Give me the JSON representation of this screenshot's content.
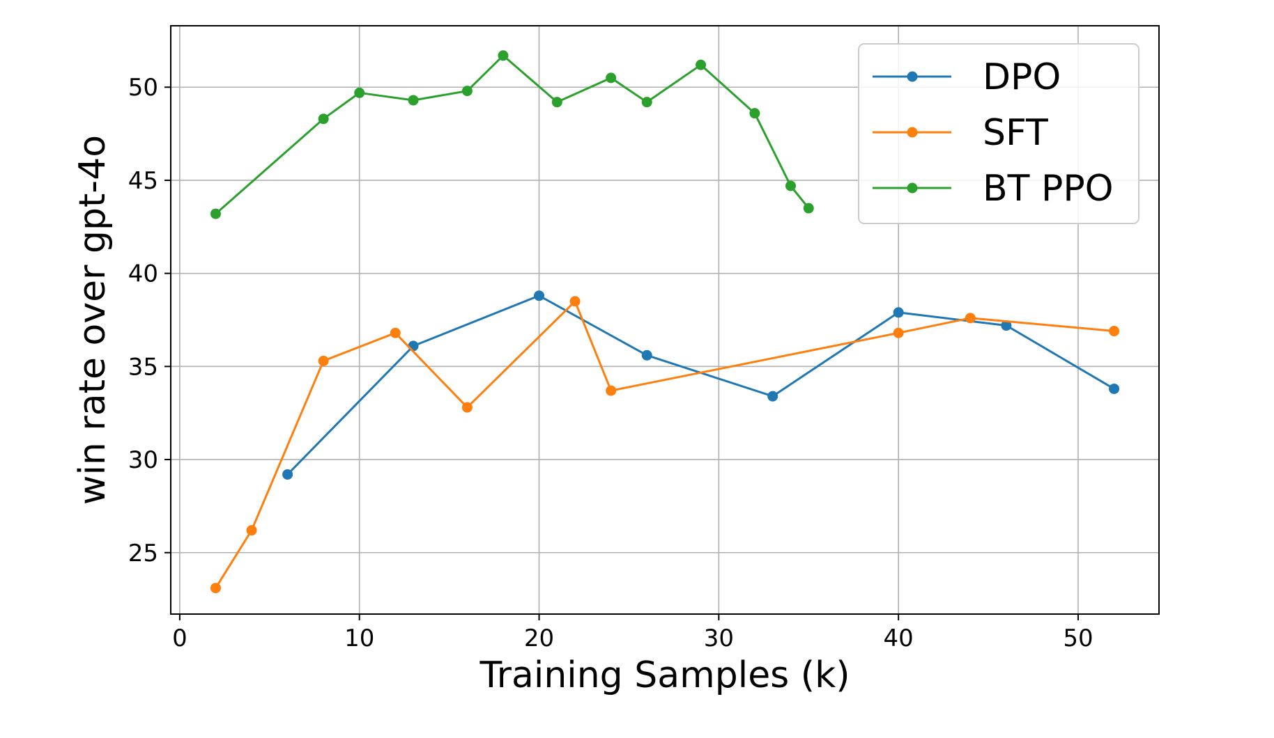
{
  "chart_data": {
    "type": "line",
    "title": "",
    "xlabel": "Training Samples (k)",
    "ylabel": "win rate over gpt-4o",
    "xlim": [
      -0.5,
      54.5
    ],
    "ylim": [
      21.7,
      53.3
    ],
    "xticks": [
      0,
      10,
      20,
      30,
      40,
      50
    ],
    "yticks": [
      25,
      30,
      35,
      40,
      45,
      50
    ],
    "xtick_labels": [
      "0",
      "10",
      "20",
      "30",
      "40",
      "50"
    ],
    "ytick_labels": [
      "25",
      "30",
      "35",
      "40",
      "45",
      "50"
    ],
    "grid": true,
    "legend_position": "top-right",
    "series": [
      {
        "name": "DPO",
        "color": "#1f77b4",
        "x": [
          6,
          13,
          20,
          26,
          33,
          40,
          46,
          52
        ],
        "y": [
          29.2,
          36.1,
          38.8,
          35.6,
          33.4,
          37.9,
          37.2,
          33.8
        ]
      },
      {
        "name": "SFT",
        "color": "#ff7f0e",
        "x": [
          2,
          4,
          8,
          12,
          16,
          22,
          24,
          40,
          44,
          52
        ],
        "y": [
          23.1,
          26.2,
          35.3,
          36.8,
          32.8,
          38.5,
          33.7,
          36.8,
          37.6,
          36.9
        ]
      },
      {
        "name": "BT PPO",
        "color": "#2ca02c",
        "x": [
          2,
          8,
          10,
          13,
          16,
          18,
          21,
          24,
          26,
          29,
          32,
          34,
          35
        ],
        "y": [
          43.2,
          48.3,
          49.7,
          49.3,
          49.8,
          51.7,
          49.2,
          50.5,
          49.2,
          51.2,
          48.6,
          44.7,
          43.5
        ]
      }
    ]
  }
}
